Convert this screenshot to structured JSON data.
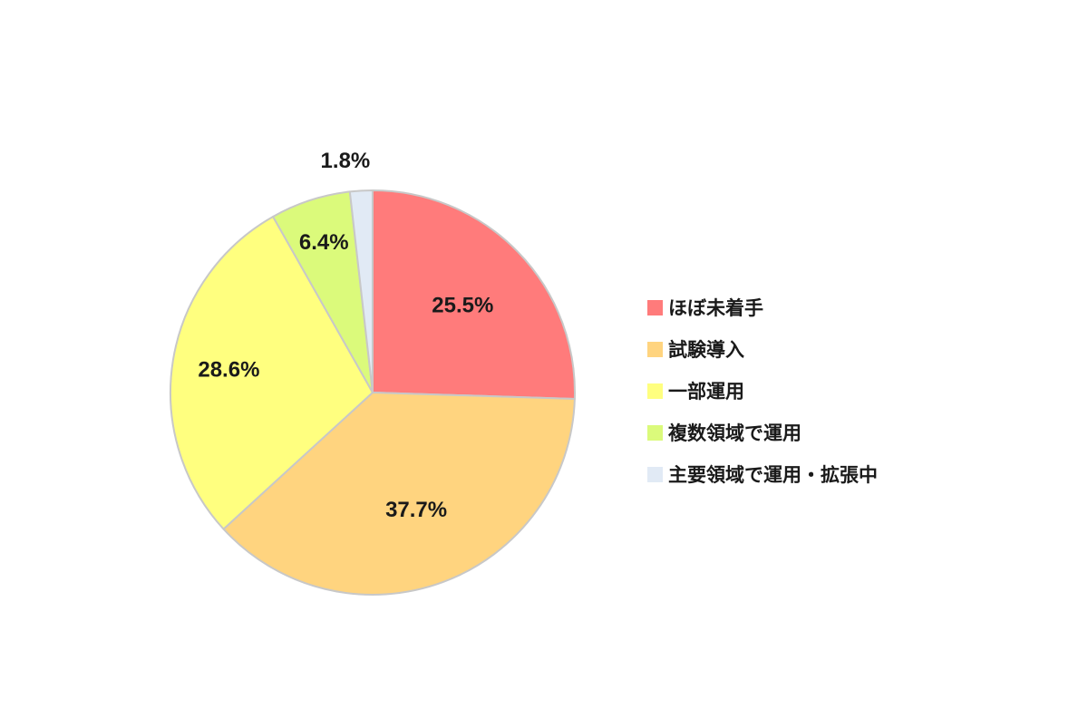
{
  "chart_data": {
    "type": "pie",
    "title": "",
    "legend_position": "right",
    "slices": [
      {
        "label": "ほぼ未着手",
        "value": 25.5,
        "value_label": "25.5%",
        "color": "#FF7B7B"
      },
      {
        "label": "試験導入",
        "value": 37.7,
        "value_label": "37.7%",
        "color": "#FFD47F"
      },
      {
        "label": "一部運用",
        "value": 28.6,
        "value_label": "28.6%",
        "color": "#FFFF7F"
      },
      {
        "label": "複数領域で運用",
        "value": 6.4,
        "value_label": "6.4%",
        "color": "#DBFA7B"
      },
      {
        "label": "主要領域で運用・拡張中",
        "value": 1.8,
        "value_label": "1.8%",
        "color": "#E1EAF5"
      }
    ]
  },
  "style": {
    "slice_border_color": "#C8C8C8"
  }
}
